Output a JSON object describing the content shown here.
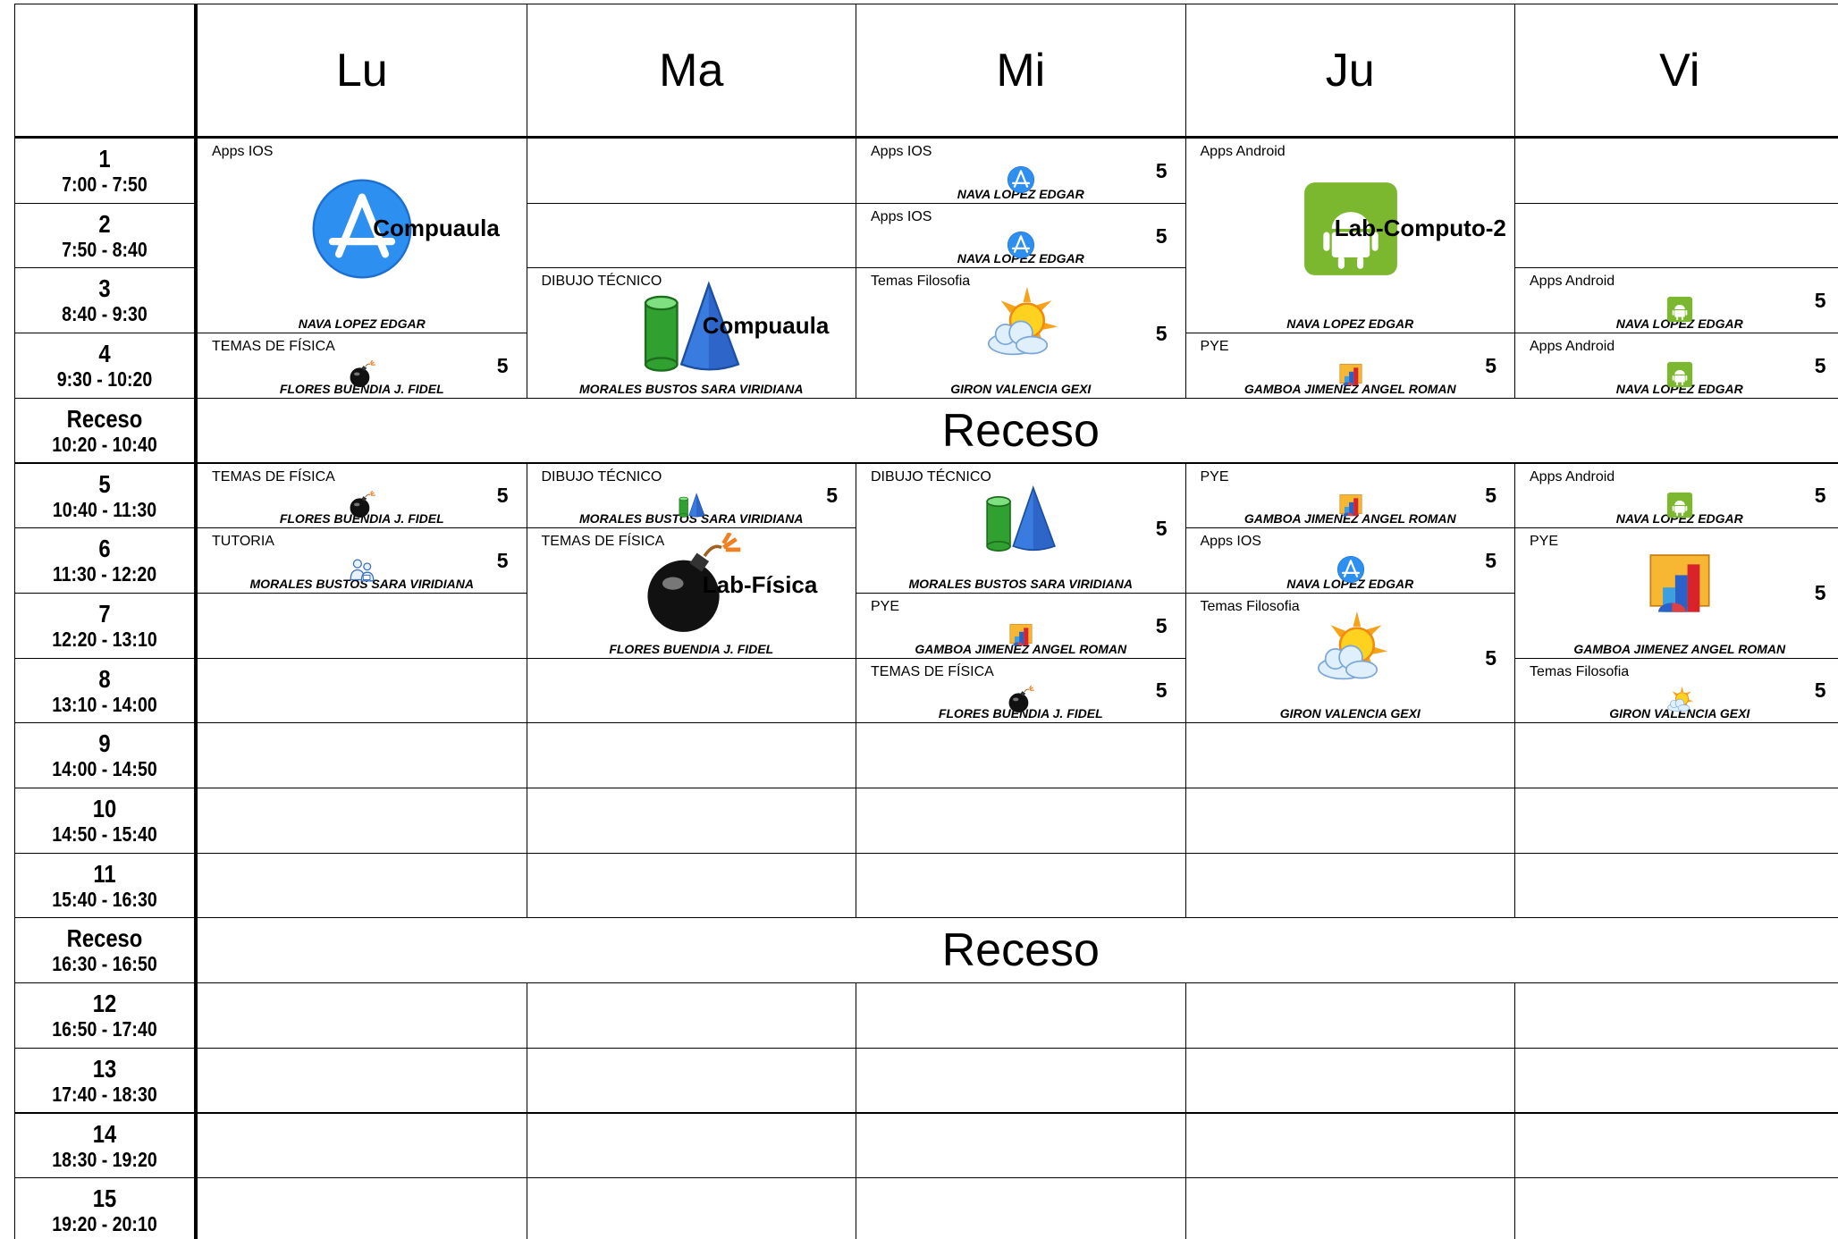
{
  "days": [
    {
      "name": "Lu",
      "classes": [
        {
          "subject": "Apps IOS",
          "start": "1",
          "end": "3",
          "room": "Compuaula",
          "teacher": "NAVA LOPEZ EDGAR",
          "icon": "appstore"
        },
        {
          "subject": "TEMAS DE FÍSICA",
          "start": "4",
          "end": "4",
          "teacher": "FLORES BUENDIA J. FIDEL",
          "credits": 5,
          "icon": "bomb"
        },
        {
          "subject": "TEMAS DE FÍSICA",
          "start": "5",
          "end": "5",
          "teacher": "FLORES BUENDIA J. FIDEL",
          "credits": 5,
          "icon": "bomb"
        },
        {
          "subject": "TUTORIA",
          "start": "6",
          "end": "6",
          "teacher": "MORALES BUSTOS SARA VIRIDIANA",
          "credits": 5,
          "icon": "people"
        }
      ]
    },
    {
      "name": "Ma",
      "classes": [
        {
          "subject": "DIBUJO TÉCNICO",
          "start": "3",
          "end": "4",
          "room": "Compuaula",
          "teacher": "MORALES BUSTOS SARA VIRIDIANA",
          "icon": "cone"
        },
        {
          "subject": "DIBUJO TÉCNICO",
          "start": "5",
          "end": "5",
          "teacher": "MORALES BUSTOS SARA VIRIDIANA",
          "credits": 5,
          "icon": "cone"
        },
        {
          "subject": "TEMAS DE FÍSICA",
          "start": "6",
          "end": "7",
          "room": "Lab-Física",
          "teacher": "FLORES BUENDIA J. FIDEL",
          "icon": "bomb"
        }
      ]
    },
    {
      "name": "Mi",
      "classes": [
        {
          "subject": "Apps IOS",
          "start": "1",
          "end": "1",
          "teacher": "NAVA LOPEZ EDGAR",
          "credits": 5,
          "icon": "appstore"
        },
        {
          "subject": "Apps IOS",
          "start": "2",
          "end": "2",
          "teacher": "NAVA LOPEZ EDGAR",
          "credits": 5,
          "icon": "appstore"
        },
        {
          "subject": "Temas Filosofia",
          "start": "3",
          "end": "4",
          "teacher": "GIRON VALENCIA GEXI",
          "credits": 5,
          "icon": "sun"
        },
        {
          "subject": "DIBUJO TÉCNICO",
          "start": "5",
          "end": "6",
          "teacher": "MORALES BUSTOS SARA VIRIDIANA",
          "credits": 5,
          "icon": "cone"
        },
        {
          "subject": "PYE",
          "start": "7",
          "end": "7",
          "teacher": "GAMBOA JIMENEZ ANGEL ROMAN",
          "credits": 5,
          "icon": "chart"
        },
        {
          "subject": "TEMAS DE FÍSICA",
          "start": "8",
          "end": "8",
          "teacher": "FLORES BUENDIA J. FIDEL",
          "credits": 5,
          "icon": "bomb"
        }
      ]
    },
    {
      "name": "Ju",
      "classes": [
        {
          "subject": "Apps Android",
          "start": "1",
          "end": "3",
          "room": "Lab-Computo-2",
          "teacher": "NAVA LOPEZ EDGAR",
          "icon": "android"
        },
        {
          "subject": "PYE",
          "start": "4",
          "end": "4",
          "teacher": "GAMBOA JIMENEZ ANGEL ROMAN",
          "credits": 5,
          "icon": "chart"
        },
        {
          "subject": "PYE",
          "start": "5",
          "end": "5",
          "teacher": "GAMBOA JIMENEZ ANGEL ROMAN",
          "credits": 5,
          "icon": "chart"
        },
        {
          "subject": "Apps IOS",
          "start": "6",
          "end": "6",
          "teacher": "NAVA LOPEZ EDGAR",
          "credits": 5,
          "icon": "appstore"
        },
        {
          "subject": "Temas Filosofia",
          "start": "7",
          "end": "8",
          "teacher": "GIRON VALENCIA GEXI",
          "credits": 5,
          "icon": "sun"
        }
      ]
    },
    {
      "name": "Vi",
      "classes": [
        {
          "subject": "Apps Android",
          "start": "3",
          "end": "3",
          "teacher": "NAVA LOPEZ EDGAR",
          "credits": 5,
          "icon": "android"
        },
        {
          "subject": "Apps Android",
          "start": "4",
          "end": "4",
          "teacher": "NAVA LOPEZ EDGAR",
          "credits": 5,
          "icon": "android"
        },
        {
          "subject": "Apps Android",
          "start": "5",
          "end": "5",
          "teacher": "NAVA LOPEZ EDGAR",
          "credits": 5,
          "icon": "android"
        },
        {
          "subject": "PYE",
          "start": "6",
          "end": "7",
          "teacher": "GAMBOA JIMENEZ ANGEL ROMAN",
          "credits": 5,
          "icon": "chart"
        },
        {
          "subject": "Temas Filosofia",
          "start": "8",
          "end": "8",
          "teacher": "GIRON VALENCIA GEXI",
          "credits": 5,
          "icon": "sun"
        }
      ]
    }
  ],
  "periods": [
    {
      "number": "1",
      "time": "7:00 - 7:50"
    },
    {
      "number": "2",
      "time": "7:50 - 8:40"
    },
    {
      "number": "3",
      "time": "8:40 - 9:30"
    },
    {
      "number": "4",
      "time": "9:30 - 10:20"
    },
    {
      "number": "Receso",
      "time": "10:20 - 10:40",
      "banner": "Receso"
    },
    {
      "number": "5",
      "time": "10:40 - 11:30"
    },
    {
      "number": "6",
      "time": "11:30 - 12:20"
    },
    {
      "number": "7",
      "time": "12:20 - 13:10"
    },
    {
      "number": "8",
      "time": "13:10 - 14:00"
    },
    {
      "number": "9",
      "time": "14:00 - 14:50"
    },
    {
      "number": "10",
      "time": "14:50 - 15:40"
    },
    {
      "number": "11",
      "time": "15:40 - 16:30"
    },
    {
      "number": "Receso",
      "time": "16:30 - 16:50",
      "banner": "Receso"
    },
    {
      "number": "12",
      "time": "16:50 - 17:40"
    },
    {
      "number": "13",
      "time": "17:40 - 18:30"
    },
    {
      "number": "14",
      "time": "18:30 - 19:20"
    },
    {
      "number": "15",
      "time": "19:20 - 20:10"
    }
  ]
}
